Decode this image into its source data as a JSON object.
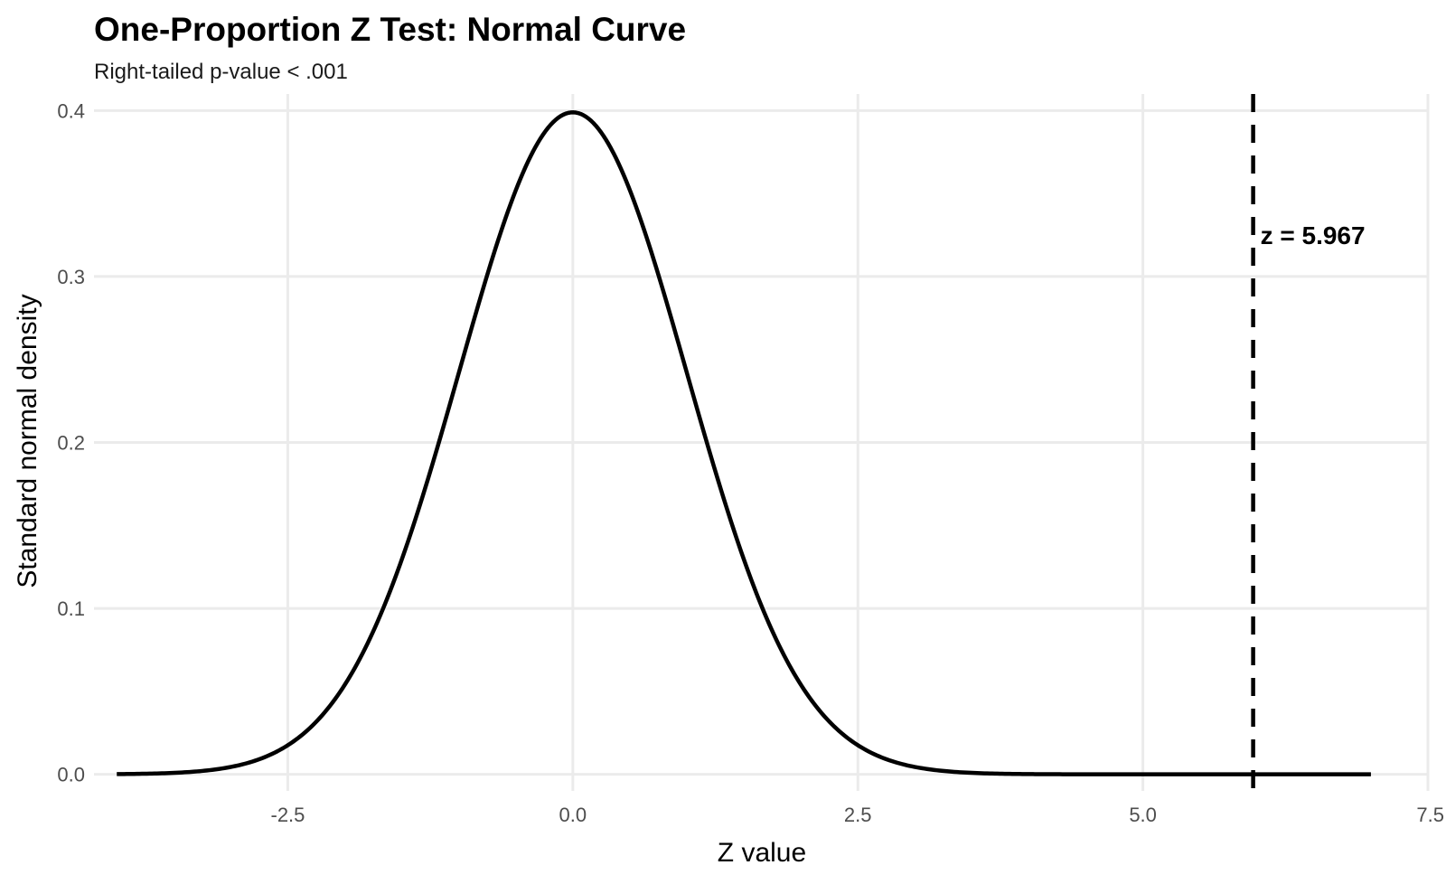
{
  "chart_data": {
    "type": "line",
    "title": "One-Proportion Z Test: Normal Curve",
    "subtitle": "Right-tailed p-value < .001",
    "xlabel": "Z value",
    "ylabel": "Standard normal density",
    "xlim": [
      -4.2,
      7.5
    ],
    "ylim": [
      -0.01,
      0.41
    ],
    "x_ticks": [
      -2.5,
      0.0,
      2.5,
      5.0,
      7.5
    ],
    "x_tick_labels": [
      "-2.5",
      "0.0",
      "2.5",
      "5.0",
      "7.5"
    ],
    "y_ticks": [
      0.0,
      0.1,
      0.2,
      0.3,
      0.4
    ],
    "y_tick_labels": [
      "0.0",
      "0.1",
      "0.2",
      "0.3",
      "0.4"
    ],
    "grid": true,
    "series": [
      {
        "distribution": "standard normal density",
        "x_range": [
          -4.0,
          7.0
        ],
        "color": "#000000"
      }
    ],
    "reference_line": {
      "x": 5.967,
      "style": "dashed",
      "color": "#000000"
    },
    "annotation": {
      "text": "z = 5.967",
      "x": 5.967,
      "y": 0.325
    }
  }
}
